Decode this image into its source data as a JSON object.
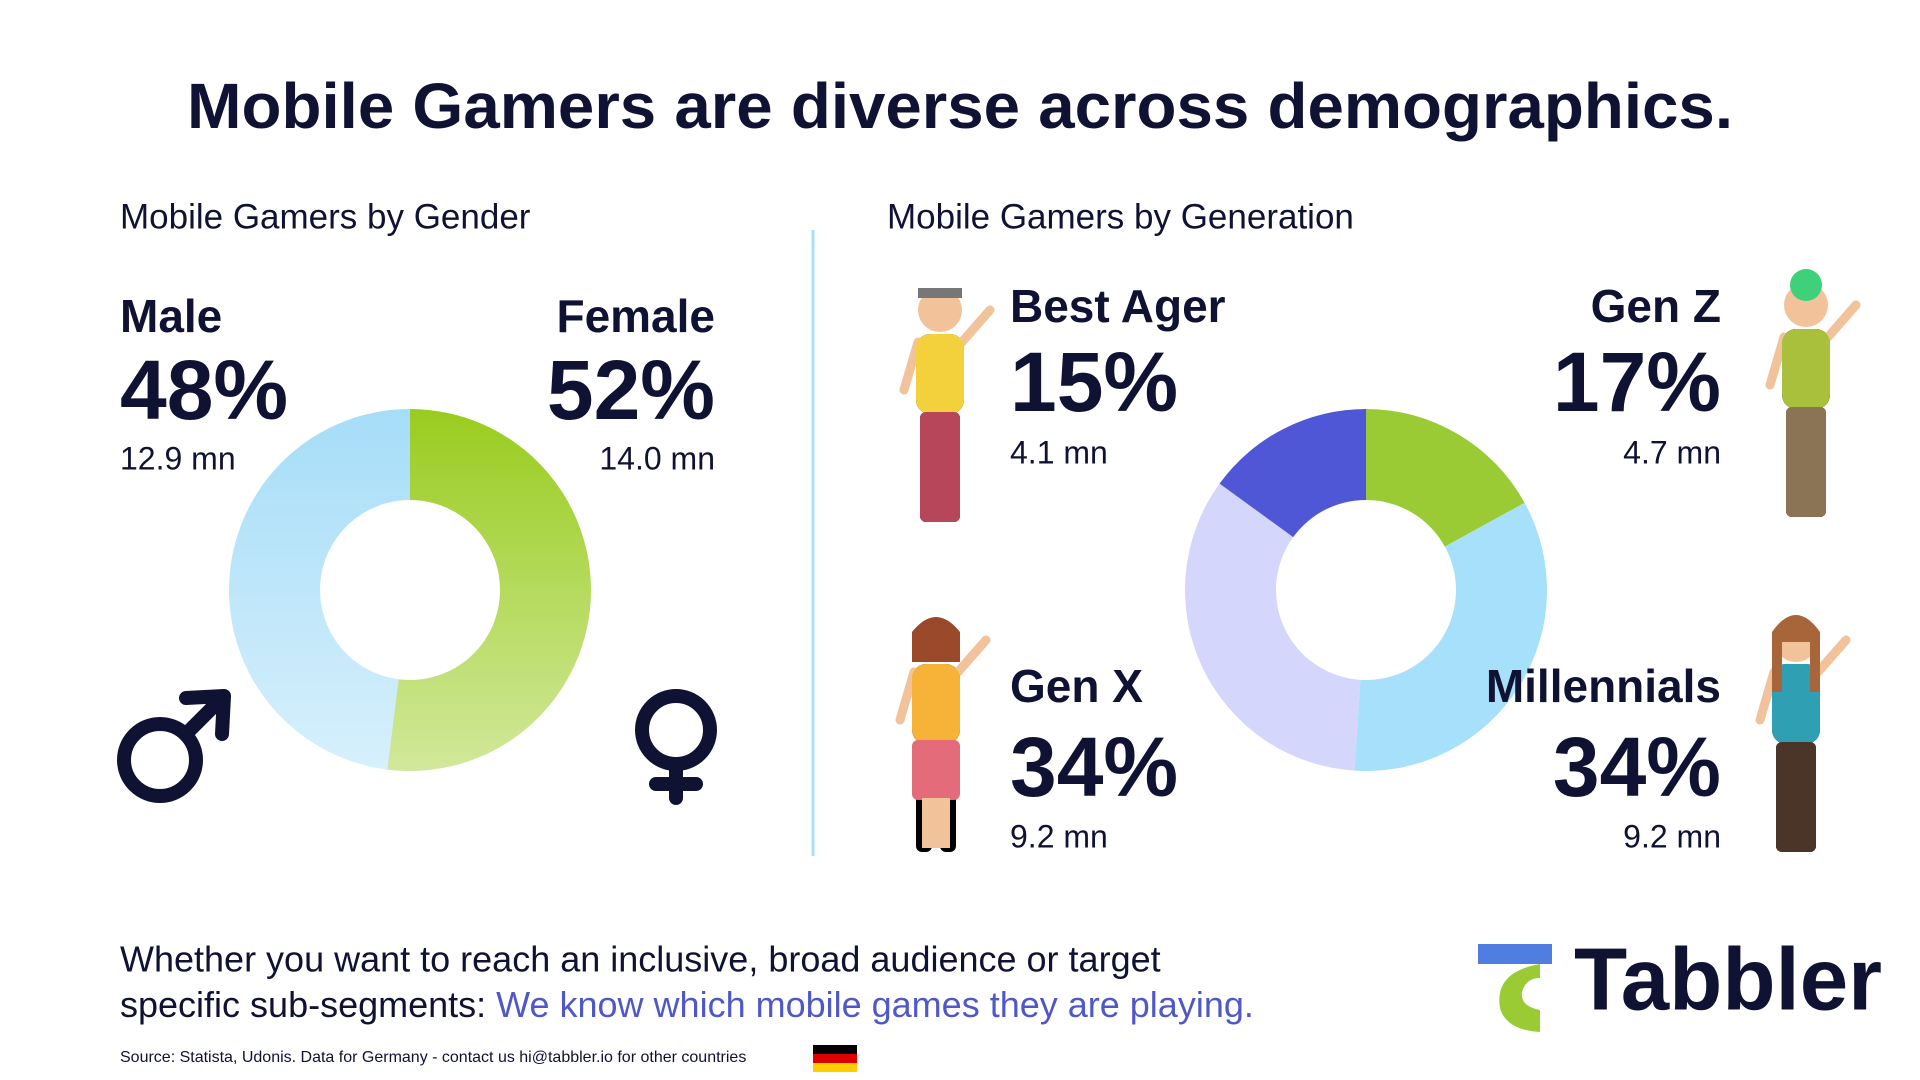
{
  "title": "Mobile Gamers are diverse across demographics.",
  "chart_data": [
    {
      "type": "pie",
      "title": "Mobile Gamers by Gender",
      "donut": true,
      "gradient": true,
      "categories": [
        "Male",
        "Female"
      ],
      "values": [
        48,
        52
      ],
      "value_labels": [
        "48%",
        "52%"
      ],
      "audience": [
        "12.9 mn",
        "14.0 mn"
      ],
      "colors": [
        "#a6ddf8",
        "#99cc1f"
      ]
    },
    {
      "type": "pie",
      "title": "Mobile Gamers by Generation",
      "donut": true,
      "gradient": false,
      "categories": [
        "Gen Z",
        "Millennials",
        "Gen X",
        "Best Ager"
      ],
      "values": [
        17,
        34,
        34,
        15
      ],
      "value_labels": [
        "17%",
        "34%",
        "34%",
        "15%"
      ],
      "audience": [
        "4.7 mn",
        "9.2 mn",
        "9.2 mn",
        "4.1 mn"
      ],
      "colors": [
        "#9acb35",
        "#a6e0fb",
        "#d4d6fb",
        "#4f57d6"
      ]
    }
  ],
  "footer": {
    "line1": "Whether you want to reach an inclusive, broad audience or target",
    "line2": "specific sub-segments:",
    "highlight": "We know which mobile games they are playing.",
    "source": "Source: Statista, Udonis. Data for Germany - contact us hi@tabbler.io for other countries"
  },
  "logo": "Tabbler"
}
